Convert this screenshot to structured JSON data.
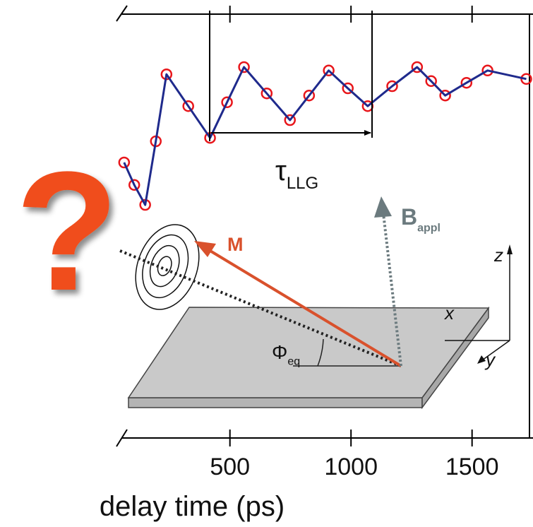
{
  "chart_data": {
    "type": "line",
    "xlabel": "delay time (ps)",
    "x": [
      63,
      105,
      150,
      194,
      238,
      328,
      418,
      488,
      558,
      652,
      748,
      827,
      908,
      987,
      1069,
      1170,
      1273,
      1331,
      1389,
      1477,
      1564,
      1724
    ],
    "series": [
      {
        "color": "#e8161b",
        "marker": "circle",
        "values": [
          0.65,
          0.597,
          0.55,
          0.7,
          0.858,
          0.783,
          0.708,
          0.792,
          0.875,
          0.813,
          0.75,
          0.808,
          0.867,
          0.825,
          0.783,
          0.83,
          0.875,
          0.842,
          0.808,
          0.838,
          0.867,
          0.847
        ]
      },
      {
        "color": "#1f2a8c",
        "values": [
          0.65,
          0.597,
          0.55,
          0.7,
          0.858,
          0.783,
          0.708,
          0.792,
          0.875,
          0.813,
          0.75,
          0.808,
          0.867,
          0.825,
          0.783,
          0.83,
          0.875,
          0.842,
          0.808,
          0.838,
          0.867,
          0.847
        ]
      }
    ],
    "xlim": [
      30,
      1740
    ],
    "ylim": [
      0,
      1
    ],
    "xticks": [
      500,
      1000,
      1500
    ],
    "annotations": [
      {
        "text": "τ",
        "sub": "LLG"
      },
      {
        "text": "B",
        "sub": "appl"
      },
      {
        "text": "M"
      },
      {
        "text": "Φ",
        "sub": "eq"
      },
      {
        "text": "x"
      },
      {
        "text": "y"
      },
      {
        "text": "z"
      },
      {
        "text": "?"
      }
    ]
  }
}
